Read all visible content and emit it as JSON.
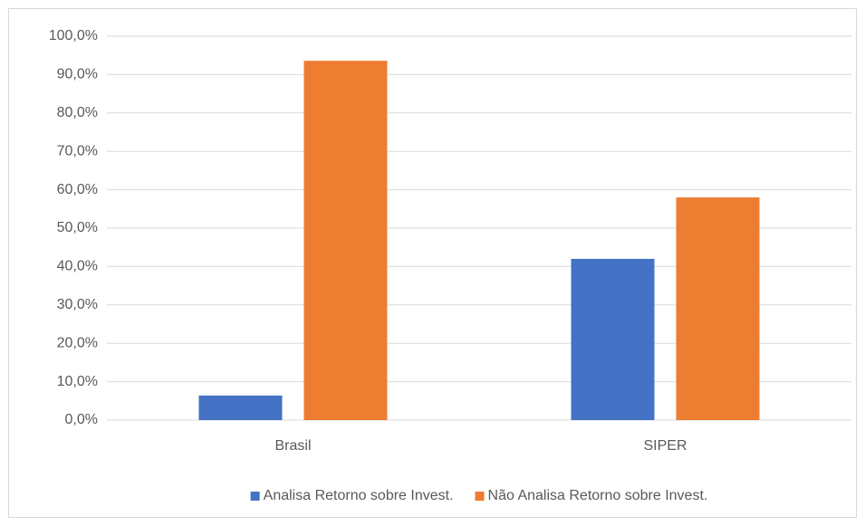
{
  "chart_data": {
    "type": "bar",
    "categories": [
      "Brasil",
      "SIPER"
    ],
    "series": [
      {
        "name": "Analisa Retorno sobre Invest.",
        "color": "#4472c4",
        "values": [
          6.4,
          42.0
        ]
      },
      {
        "name": "Não Analisa Retorno sobre Invest.",
        "color": "#ed7d31",
        "values": [
          93.6,
          58.0
        ]
      }
    ],
    "ylim": [
      0,
      100
    ],
    "yticks": [
      {
        "value": 0,
        "label": "0,0%"
      },
      {
        "value": 10,
        "label": "10,0%"
      },
      {
        "value": 20,
        "label": "20,0%"
      },
      {
        "value": 30,
        "label": "30,0%"
      },
      {
        "value": 40,
        "label": "40,0%"
      },
      {
        "value": 50,
        "label": "50,0%"
      },
      {
        "value": 60,
        "label": "60,0%"
      },
      {
        "value": 70,
        "label": "70,0%"
      },
      {
        "value": 80,
        "label": "80,0%"
      },
      {
        "value": 90,
        "label": "90,0%"
      },
      {
        "value": 100,
        "label": "100,0%"
      }
    ],
    "grid": true,
    "legend": "bottom"
  }
}
